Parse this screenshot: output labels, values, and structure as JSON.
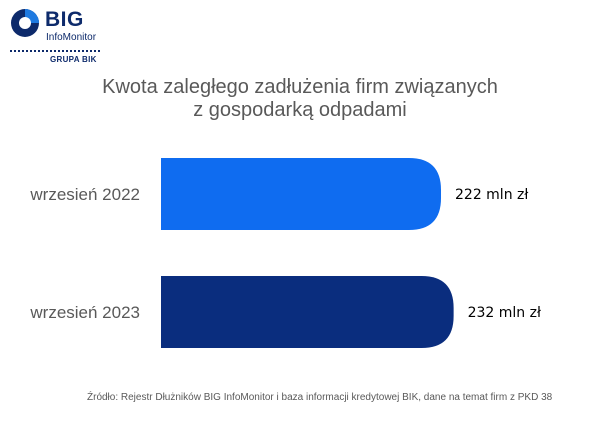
{
  "logo": {
    "name": "BIG",
    "subtitle": "InfoMonitor",
    "group": "GRUPA BIK"
  },
  "chart_data": {
    "type": "bar",
    "orientation": "horizontal",
    "title_lines": [
      "Kwota zaległego zadłużenia firm związanych",
      "z gospodarką odpadami"
    ],
    "categories": [
      "wrzesień 2022",
      "wrzesień 2023"
    ],
    "values": [
      222,
      232
    ],
    "value_labels": [
      "222 mln zł",
      "232 mln zł"
    ],
    "unit": "mln zł",
    "colors": [
      "#0f6cf0",
      "#0a2d7e"
    ],
    "grid": false,
    "legend": "none"
  },
  "source": "Źródło: Rejestr Dłużników BIG InfoMonitor i baza informacji kredytowej BIK, dane na temat firm z PKD 38"
}
